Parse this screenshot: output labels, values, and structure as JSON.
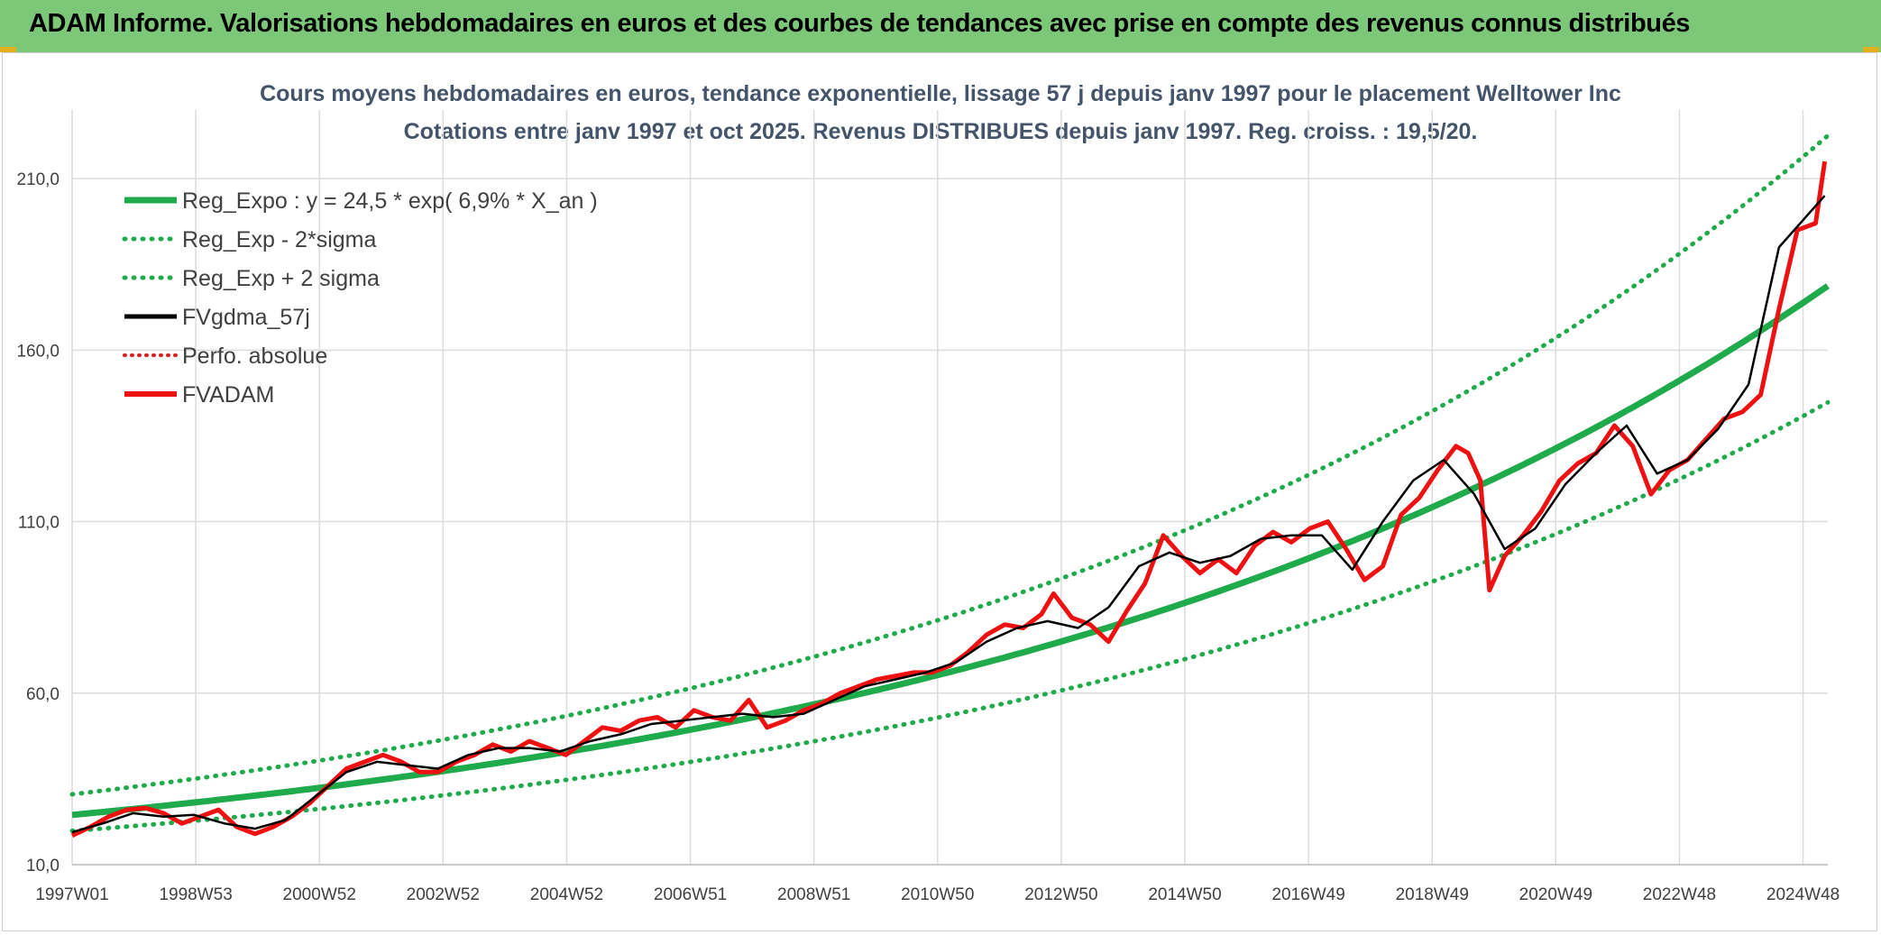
{
  "banner_title": "ADAM Informe. Valorisations hebdomadaires en euros et des courbes de tendances avec prise en compte des revenus connus distribués",
  "colors": {
    "banner": "#7dc878",
    "reg_green": "#1faa4b",
    "band_green": "#1faa4b",
    "fv_black": "#000000",
    "adam_red": "#ee1111",
    "perfo_red": "#dd2222",
    "grid": "#dcdcdc"
  },
  "chart_data": {
    "type": "line",
    "title": "Cours moyens hebdomadaires en euros, tendance exponentielle, lissage 57 j depuis janv 1997 pour le placement Welltower Inc",
    "subtitle": "Cotations entre janv 1997 et oct 2025. Revenus DISTRIBUES depuis janv 1997. Reg. croiss. : 19,5/20.",
    "y_ticks": [
      "10,0",
      "60,0",
      "110,0",
      "160,0",
      "210,0"
    ],
    "ylim": [
      10,
      230
    ],
    "x_ticks": [
      "1997W01",
      "1998W53",
      "2000W52",
      "2002W52",
      "2004W52",
      "2006W51",
      "2008W51",
      "2010W50",
      "2012W50",
      "2014W50",
      "2016W49",
      "2018W49",
      "2020W49",
      "2022W48",
      "2024W48"
    ],
    "xlim": [
      1997.0,
      2025.8
    ],
    "legend_position": "top-left",
    "legend": [
      {
        "label": "Reg_Expo : y = 24,5 * exp( 6,9% *  X_an )",
        "style": "solid-green"
      },
      {
        "label": "Reg_Exp - 2*sigma",
        "style": "dotted-green"
      },
      {
        "label": "Reg_Exp + 2 sigma",
        "style": "dotted-green"
      },
      {
        "label": "FVgdma_57j",
        "style": "solid-black"
      },
      {
        "label": "Perfo. absolue",
        "style": "dotted-red"
      },
      {
        "label": "FVADAM",
        "style": "solid-red"
      }
    ],
    "regression": {
      "a": 24.5,
      "b": 0.069,
      "x0": 1997.0
    },
    "band_factor_low": 0.81,
    "band_factor_high": 1.245,
    "series": [
      {
        "name": "FVADAM",
        "x": [
          1997.0,
          1997.3,
          1997.6,
          1997.9,
          1998.2,
          1998.5,
          1998.8,
          1999.1,
          1999.4,
          1999.7,
          2000.0,
          2000.3,
          2000.6,
          2000.9,
          2001.2,
          2001.5,
          2001.8,
          2002.1,
          2002.4,
          2002.7,
          2003.0,
          2003.3,
          2003.6,
          2003.9,
          2004.2,
          2004.5,
          2004.8,
          2005.1,
          2005.4,
          2005.7,
          2006.0,
          2006.3,
          2006.6,
          2006.9,
          2007.2,
          2007.5,
          2007.8,
          2008.1,
          2008.4,
          2008.7,
          2009.0,
          2009.3,
          2009.6,
          2009.9,
          2010.2,
          2010.5,
          2010.8,
          2011.1,
          2011.4,
          2011.7,
          2012.0,
          2012.3,
          2012.6,
          2012.9,
          2013.1,
          2013.4,
          2013.7,
          2014.0,
          2014.3,
          2014.6,
          2014.9,
          2015.2,
          2015.5,
          2015.8,
          2016.1,
          2016.4,
          2016.7,
          2017.0,
          2017.3,
          2017.6,
          2017.9,
          2018.2,
          2018.5,
          2018.8,
          2019.1,
          2019.4,
          2019.7,
          2019.9,
          2020.1,
          2020.25,
          2020.5,
          2020.8,
          2021.1,
          2021.4,
          2021.7,
          2022.0,
          2022.3,
          2022.6,
          2022.9,
          2023.2,
          2023.5,
          2023.8,
          2024.1,
          2024.4,
          2024.7,
          2025.0,
          2025.3,
          2025.6,
          2025.75
        ],
        "y": [
          18.5,
          21,
          24,
          26,
          26.5,
          25,
          22,
          24,
          26,
          21,
          19,
          21,
          24,
          28,
          33,
          38,
          40,
          42,
          40,
          37,
          37,
          40,
          42,
          45,
          43,
          46,
          44,
          42,
          46,
          50,
          49,
          52,
          53,
          50,
          55,
          53,
          52,
          58,
          50,
          52,
          55,
          57,
          60,
          62,
          64,
          65,
          66,
          66,
          68,
          72,
          77,
          80,
          79,
          83,
          89,
          82,
          80,
          75,
          84,
          92,
          106,
          100,
          95,
          99,
          95,
          103,
          107,
          104,
          108,
          110,
          102,
          93,
          97,
          112,
          117,
          125,
          132,
          130,
          122,
          90,
          100,
          106,
          113,
          122,
          127,
          130,
          138,
          132,
          118,
          125,
          128,
          134,
          140,
          142,
          147,
          172,
          195,
          197,
          215
        ]
      },
      {
        "name": "FVgdma_57j",
        "x": [
          1997.0,
          1997.5,
          1998.0,
          1998.5,
          1999.0,
          1999.5,
          2000.0,
          2000.5,
          2001.0,
          2001.5,
          2002.0,
          2002.5,
          2003.0,
          2003.5,
          2004.0,
          2004.5,
          2005.0,
          2005.5,
          2006.0,
          2006.5,
          2007.0,
          2007.5,
          2008.0,
          2008.5,
          2009.0,
          2009.5,
          2010.0,
          2010.5,
          2011.0,
          2011.5,
          2012.0,
          2012.5,
          2013.0,
          2013.5,
          2014.0,
          2014.5,
          2015.0,
          2015.5,
          2016.0,
          2016.5,
          2017.0,
          2017.5,
          2018.0,
          2018.5,
          2019.0,
          2019.5,
          2020.0,
          2020.5,
          2021.0,
          2021.5,
          2022.0,
          2022.5,
          2023.0,
          2023.5,
          2024.0,
          2024.5,
          2025.0,
          2025.5,
          2025.75
        ],
        "y": [
          19.5,
          22,
          25,
          24,
          24.5,
          22,
          20.5,
          23,
          30,
          37,
          40,
          39,
          38,
          42,
          44,
          44,
          43,
          46,
          48,
          51,
          52,
          53,
          54,
          53,
          54,
          58,
          62,
          64,
          66,
          69,
          75,
          79,
          81,
          79,
          85,
          97,
          101,
          98,
          100,
          105,
          106,
          106,
          96,
          110,
          122,
          128,
          118,
          102,
          108,
          121,
          130,
          138,
          124,
          128,
          137,
          150,
          190,
          200,
          205
        ]
      }
    ]
  }
}
